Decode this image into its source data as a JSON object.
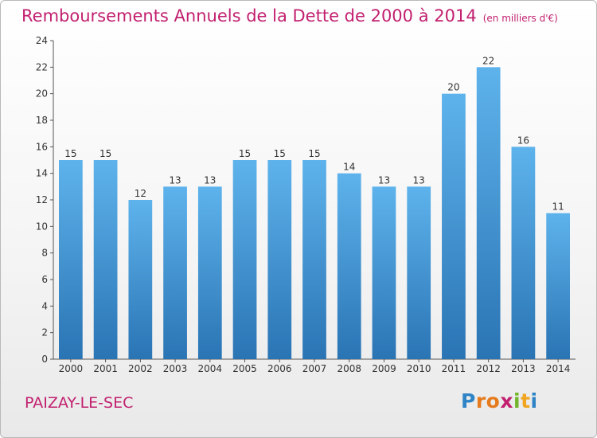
{
  "header": {
    "title": "Remboursements Annuels de la Dette de 2000 à 2014",
    "unit": "(en milliers d'€)"
  },
  "footer": {
    "city": "PAIZAY-LE-SEC",
    "logo": "Proxiti"
  },
  "colors": {
    "accent": "#c2206f",
    "bar": "#3a91d4",
    "bar_light": "#5eb3ec",
    "bar_dark": "#2a74b4"
  },
  "chart_data": {
    "type": "bar",
    "categories": [
      "2000",
      "2001",
      "2002",
      "2003",
      "2004",
      "2005",
      "2006",
      "2007",
      "2008",
      "2009",
      "2010",
      "2011",
      "2012",
      "2013",
      "2014"
    ],
    "values": [
      15,
      15,
      12,
      13,
      13,
      15,
      15,
      15,
      14,
      13,
      13,
      20,
      22,
      16,
      11
    ],
    "title": "Remboursements Annuels de la Dette de 2000 à 2014",
    "ylim": [
      0,
      24
    ],
    "yticks": [
      0,
      2,
      4,
      6,
      8,
      10,
      12,
      14,
      16,
      18,
      20,
      22,
      24
    ],
    "grid": false,
    "data_labels": true
  }
}
